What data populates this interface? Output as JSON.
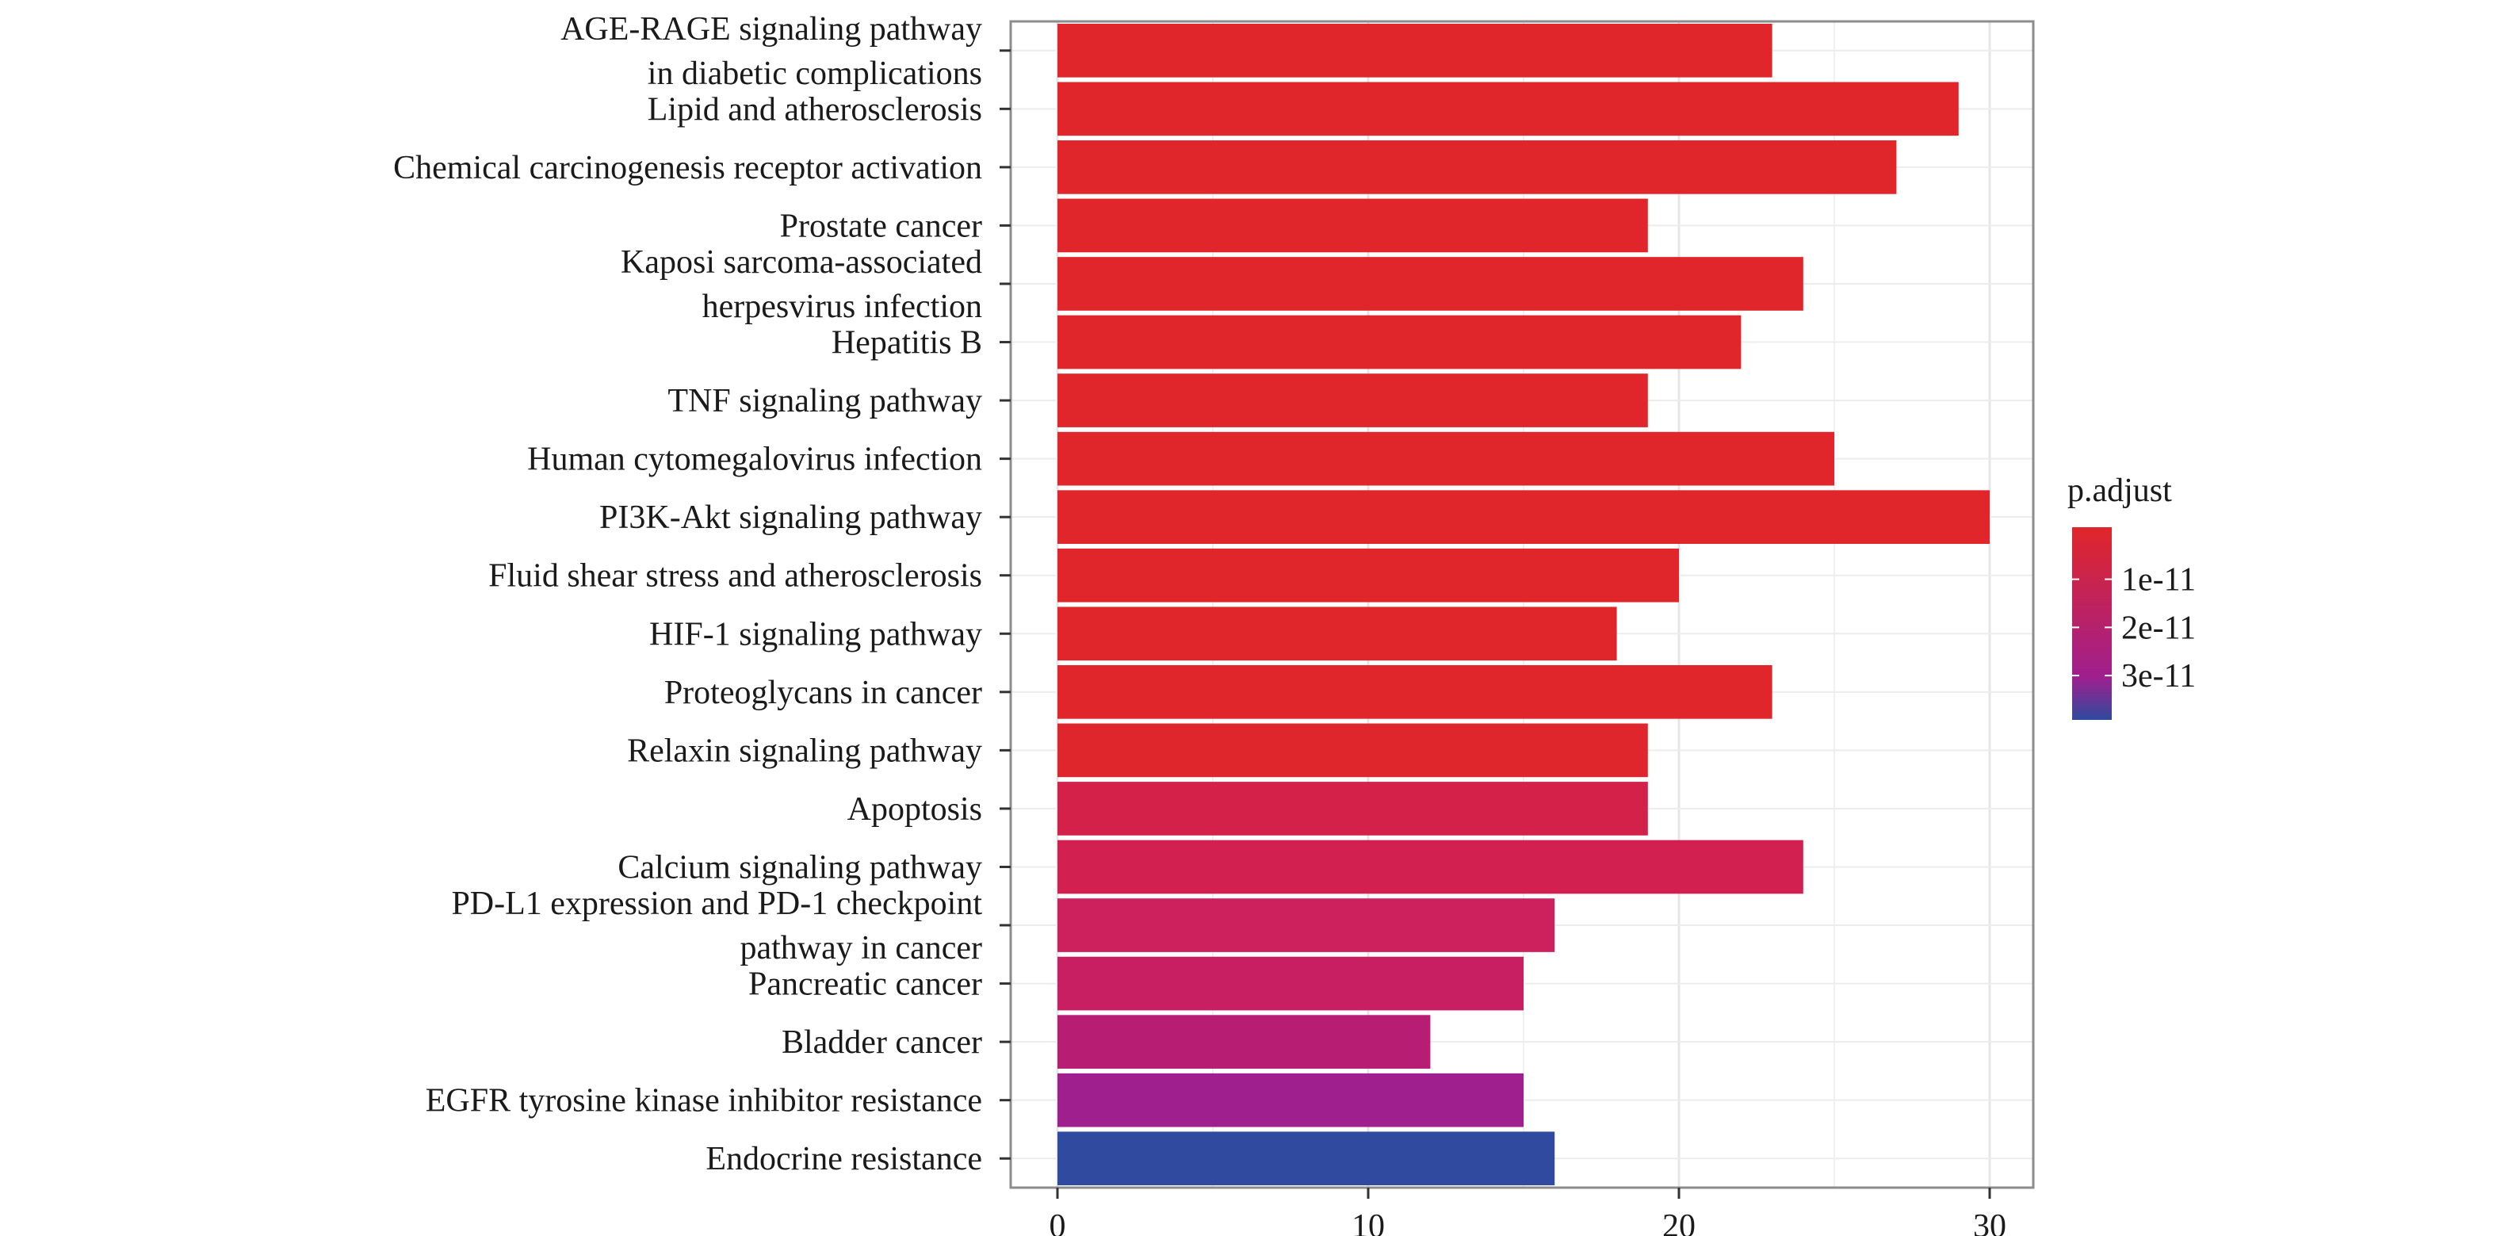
{
  "chart_data": {
    "type": "bar",
    "orientation": "horizontal",
    "categories": [
      "AGE-RAGE signaling pathway\nin diabetic complications",
      "Lipid and atherosclerosis",
      "Chemical carcinogenesis receptor activation",
      "Prostate cancer",
      "Kaposi sarcoma-associated\nherpesvirus infection",
      "Hepatitis B",
      "TNF signaling pathway",
      "Human cytomegalovirus infection",
      "PI3K-Akt signaling pathway",
      "Fluid shear stress and atherosclerosis",
      "HIF-1 signaling pathway",
      "Proteoglycans in cancer",
      "Relaxin signaling pathway",
      "Apoptosis",
      "Calcium signaling pathway",
      "PD-L1 expression and PD-1 checkpoint\npathway in cancer",
      "Pancreatic cancer",
      "Bladder cancer",
      "EGFR tyrosine kinase inhibitor resistance",
      "Endocrine resistance"
    ],
    "values": [
      23,
      29,
      27,
      19,
      24,
      22,
      19,
      25,
      30,
      20,
      18,
      23,
      19,
      19,
      24,
      16,
      15,
      12,
      15,
      16
    ],
    "colors": [
      "#e0262a",
      "#e0262a",
      "#e0262a",
      "#e0262a",
      "#e0262a",
      "#e0262a",
      "#e0262a",
      "#e0262a",
      "#e0262a",
      "#e0262a",
      "#e0262a",
      "#e0262a",
      "#df262c",
      "#d4214a",
      "#d22150",
      "#cc215c",
      "#c81e62",
      "#b81d74",
      "#9f1f8e",
      "#2f4a9e"
    ],
    "xticks": [
      0,
      10,
      20,
      30
    ],
    "xlim": [
      -1.5,
      31.5
    ],
    "title": "",
    "xlabel": "",
    "ylabel": "",
    "grid": true,
    "legend": {
      "title": "p.adjust",
      "position": "right",
      "ticks": [
        "1e-11",
        "2e-11",
        "3e-11"
      ],
      "tick_fractions": [
        0.27,
        0.52,
        0.77
      ],
      "gradient_top": "#e0262a",
      "gradient_mid": "#9f1f8e",
      "gradient_bottom": "#2f4a9e"
    }
  }
}
